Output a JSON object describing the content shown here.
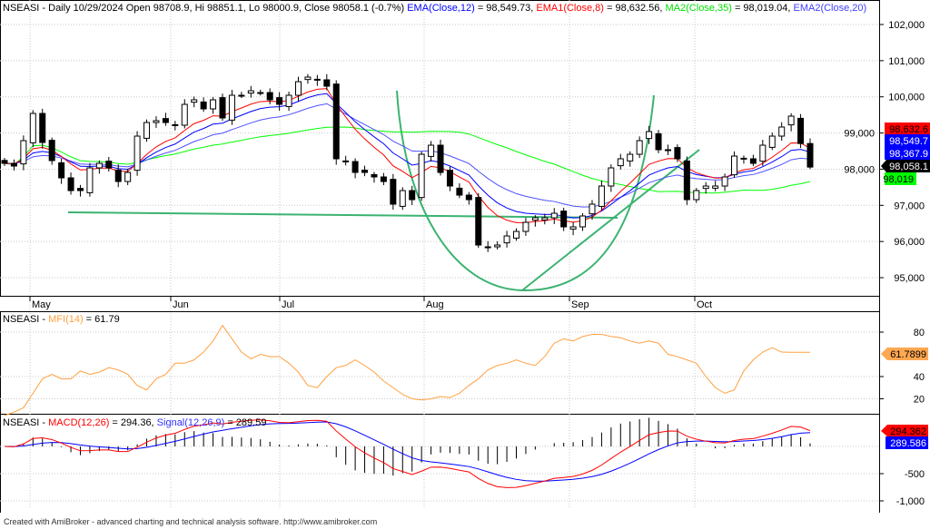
{
  "header": {
    "symbol_line": "NSEASI - Daily 10/29/2024 Open 98708.9, Hi 98851.1, Lo 98000.9, Close 98058.1 (-0.7%)",
    "ema12_label": "EMA(Close,12)",
    "ema12_value": " = 98,549.73, ",
    "ema1_label": "EMA1(Close,8)",
    "ema1_value": " = 98,632.56, ",
    "ma2_label": "MA2(Close,35)",
    "ma2_value": " = 98,019.04, ",
    "ema2_label": "EMA2(Close,20)"
  },
  "badges": {
    "ema8": "98,632.6",
    "ema12": "98,549.7",
    "ema20": "98,367.9",
    "close": "98,058.1",
    "ma35": "98,019",
    "mfi": "61.7899",
    "macd": "294.362",
    "signal": "289.586"
  },
  "mfi_header": {
    "prefix": "NSEASI - ",
    "label": "MFI(14)",
    "value": " = 61.79"
  },
  "macd_header": {
    "prefix": "NSEASI - ",
    "macd_label": "MACD(12,26)",
    "macd_value": " = 294.36, ",
    "signal_label": "Signal(12,26,9)",
    "signal_value": " = 289.59"
  },
  "footer": "Created with AmiBroker - advanced charting and technical analysis software. http://www.amibroker.com",
  "colors": {
    "ema12": "#0000ff",
    "ema8": "#ff0000",
    "ma35": "#00ff00",
    "ema20": "#5050ff",
    "mfi": "#ffa040",
    "trend": "#3cb371"
  },
  "chart_data": [
    {
      "type": "candlestick",
      "title": "NSEASI - Daily",
      "x_tick_labels": [
        "May",
        "Jun",
        "Jul",
        "Aug",
        "Sep",
        "Oct"
      ],
      "y_tick_labels": [
        "95,000",
        "96,000",
        "97,000",
        "98,000",
        "99,000",
        "100,000",
        "101,000",
        "102,000"
      ],
      "ylim": [
        94500,
        102600
      ],
      "last_bar": {
        "open": 98708.9,
        "high": 98851.1,
        "low": 98000.9,
        "close": 98058.1
      },
      "close": [
        98161,
        98086,
        98788,
        99541,
        98738,
        98237,
        97760,
        97408,
        97408,
        98036,
        98161,
        98036,
        97659,
        97910,
        98914,
        99290,
        99340,
        99290,
        99215,
        99792,
        99918,
        99667,
        99918,
        99416,
        100043,
        100043,
        100168,
        100118,
        99918,
        99792,
        100043,
        100419,
        100545,
        100470,
        100294,
        98287,
        98211,
        97910,
        97910,
        97785,
        97659,
        97032,
        97408,
        97157,
        98412,
        98663,
        97910,
        97534,
        97283,
        97157,
        95903,
        95853,
        95903,
        96154,
        96279,
        96530,
        96656,
        96656,
        96781,
        96405,
        96405,
        96706,
        97032,
        97534,
        98036,
        98287,
        98412,
        98788,
        99040,
        98538,
        98538,
        98287,
        97157,
        97408,
        97534,
        97534,
        97785,
        98362,
        98287,
        98161,
        98663,
        98914,
        99165,
        99466,
        98708.9,
        98058.1
      ],
      "series": [
        "EMA(Close,12)",
        "EMA1(Close,8)",
        "MA2(Close,35)",
        "EMA2(Close,20)"
      ]
    },
    {
      "type": "line",
      "title": "MFI(14)",
      "y_tick_labels": [
        "20",
        "40",
        "80"
      ],
      "ylim": [
        0,
        100
      ],
      "values": [
        5,
        8,
        12,
        25,
        38,
        42,
        38,
        38,
        45,
        42,
        44,
        48,
        46,
        42,
        32,
        28,
        38,
        42,
        52,
        52,
        55,
        62,
        72,
        86,
        74,
        62,
        56,
        60,
        58,
        58,
        52,
        44,
        32,
        30,
        40,
        48,
        50,
        55,
        50,
        44,
        36,
        30,
        24,
        20,
        19,
        20,
        22,
        21,
        25,
        32,
        38,
        46,
        50,
        52,
        55,
        52,
        50,
        58,
        70,
        74,
        72,
        76,
        78,
        78,
        76,
        75,
        72,
        70,
        72,
        70,
        60,
        58,
        55,
        52,
        40,
        30,
        25,
        28,
        45,
        55,
        62,
        66,
        62,
        61.79,
        61.79,
        61.79
      ]
    },
    {
      "type": "line",
      "title": "MACD(12,26), Signal(12,26,9)",
      "y_tick_labels": [
        "-1,000",
        "-500"
      ],
      "ylim": [
        -1150,
        550
      ],
      "last_values": {
        "macd": 294.36,
        "signal": 289.59
      }
    }
  ]
}
